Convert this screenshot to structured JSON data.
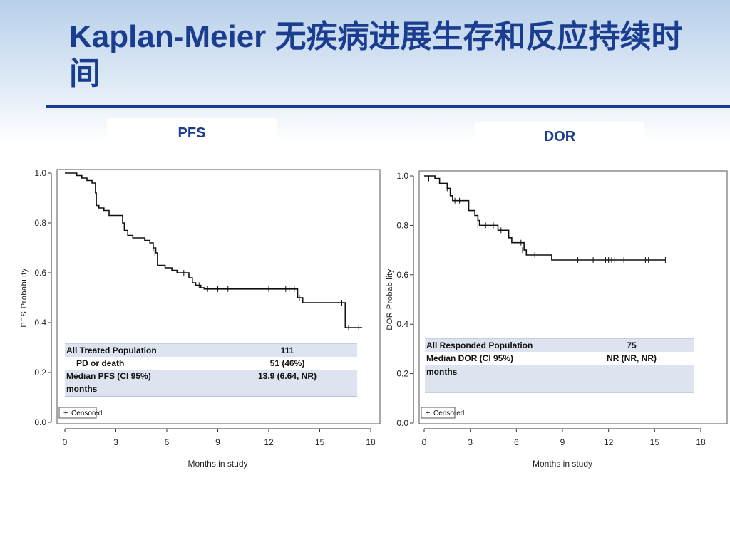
{
  "slide": {
    "title": "Kaplan-Meier 无疾病进展生存和反应持续时间"
  },
  "chart_data": [
    {
      "type": "line",
      "panel_title": "PFS",
      "xlabel": "Months in study",
      "ylabel": "PFS Probability",
      "xlim": [
        0,
        18
      ],
      "ylim": [
        0,
        1.0
      ],
      "x_ticks": [
        "0",
        "3",
        "6",
        "9",
        "12",
        "15",
        "18"
      ],
      "y_ticks": [
        "0.0",
        "0.2",
        "0.4",
        "0.6",
        "0.8",
        "1.0"
      ],
      "legend": "Censored",
      "series": [
        {
          "steps": [
            [
              0,
              1.0
            ],
            [
              0.7,
              0.99
            ],
            [
              1.0,
              0.98
            ],
            [
              1.3,
              0.97
            ],
            [
              1.6,
              0.96
            ],
            [
              1.8,
              0.92
            ],
            [
              1.85,
              0.87
            ],
            [
              2.0,
              0.86
            ],
            [
              2.3,
              0.85
            ],
            [
              2.6,
              0.83
            ],
            [
              3.4,
              0.8
            ],
            [
              3.5,
              0.77
            ],
            [
              3.7,
              0.75
            ],
            [
              4.0,
              0.74
            ],
            [
              4.7,
              0.73
            ],
            [
              5.0,
              0.72
            ],
            [
              5.2,
              0.7
            ],
            [
              5.35,
              0.68
            ],
            [
              5.45,
              0.63
            ],
            [
              5.9,
              0.62
            ],
            [
              6.3,
              0.61
            ],
            [
              6.6,
              0.6
            ],
            [
              7.3,
              0.58
            ],
            [
              7.5,
              0.56
            ],
            [
              7.7,
              0.55
            ],
            [
              8.0,
              0.54
            ],
            [
              8.2,
              0.535
            ],
            [
              13.7,
              0.5
            ],
            [
              14.0,
              0.48
            ],
            [
              16.5,
              0.38
            ],
            [
              17.5,
              0.38
            ]
          ],
          "censored": [
            [
              5.2,
              0.7
            ],
            [
              5.3,
              0.68
            ],
            [
              5.6,
              0.63
            ],
            [
              7.0,
              0.6
            ],
            [
              7.9,
              0.55
            ],
            [
              8.4,
              0.535
            ],
            [
              9.0,
              0.535
            ],
            [
              9.6,
              0.535
            ],
            [
              11.6,
              0.535
            ],
            [
              12.0,
              0.535
            ],
            [
              13.0,
              0.535
            ],
            [
              13.2,
              0.535
            ],
            [
              13.5,
              0.535
            ],
            [
              13.8,
              0.5
            ],
            [
              16.3,
              0.48
            ],
            [
              16.7,
              0.38
            ],
            [
              17.3,
              0.38
            ]
          ]
        }
      ],
      "table": [
        {
          "label": "All Treated Population",
          "value": "111"
        },
        {
          "label": "PD or death",
          "value": "51 (46%)"
        },
        {
          "label": "Median PFS (CI 95%)",
          "value": "13.9 (6.64, NR)"
        },
        {
          "label": "months",
          "value": ""
        }
      ]
    },
    {
      "type": "line",
      "panel_title": "DOR",
      "xlabel": "Months in study",
      "ylabel": "DOR Probability",
      "xlim": [
        0,
        18
      ],
      "ylim": [
        0,
        1.0
      ],
      "x_ticks": [
        "0",
        "3",
        "6",
        "9",
        "12",
        "15",
        "18"
      ],
      "y_ticks": [
        "0.0",
        "0.2",
        "0.4",
        "0.6",
        "0.8",
        "1.0"
      ],
      "legend": "Censored",
      "series": [
        {
          "steps": [
            [
              0,
              1.0
            ],
            [
              0.7,
              0.99
            ],
            [
              1.0,
              0.97
            ],
            [
              1.5,
              0.95
            ],
            [
              1.7,
              0.92
            ],
            [
              1.85,
              0.9
            ],
            [
              2.9,
              0.86
            ],
            [
              3.3,
              0.84
            ],
            [
              3.5,
              0.82
            ],
            [
              3.6,
              0.8
            ],
            [
              4.8,
              0.78
            ],
            [
              5.5,
              0.75
            ],
            [
              5.7,
              0.73
            ],
            [
              6.5,
              0.7
            ],
            [
              6.65,
              0.68
            ],
            [
              8.3,
              0.66
            ],
            [
              15.7,
              0.66
            ]
          ],
          "censored": [
            [
              0.3,
              0.99
            ],
            [
              1.5,
              0.95
            ],
            [
              2.0,
              0.9
            ],
            [
              2.3,
              0.9
            ],
            [
              3.5,
              0.8
            ],
            [
              4.0,
              0.8
            ],
            [
              4.5,
              0.8
            ],
            [
              5.0,
              0.78
            ],
            [
              6.3,
              0.73
            ],
            [
              6.4,
              0.7
            ],
            [
              7.2,
              0.68
            ],
            [
              9.3,
              0.66
            ],
            [
              10.0,
              0.66
            ],
            [
              11.0,
              0.66
            ],
            [
              11.8,
              0.66
            ],
            [
              12.0,
              0.66
            ],
            [
              12.2,
              0.66
            ],
            [
              12.4,
              0.66
            ],
            [
              13.0,
              0.66
            ],
            [
              14.4,
              0.66
            ],
            [
              14.6,
              0.66
            ],
            [
              15.7,
              0.66
            ]
          ]
        }
      ],
      "table": [
        {
          "label": "All Responded Population",
          "value": "75"
        },
        {
          "label": "Median DOR (CI 95%)",
          "value": "NR (NR, NR)"
        },
        {
          "label": "months",
          "value": ""
        }
      ]
    }
  ]
}
